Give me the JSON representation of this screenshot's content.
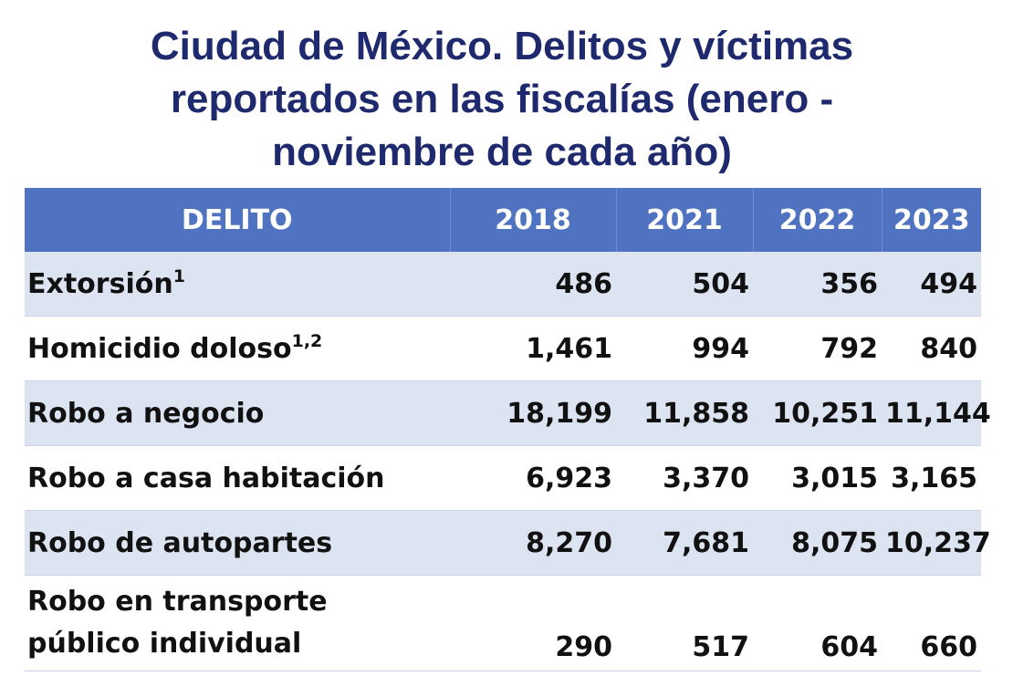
{
  "title": {
    "line1": "Ciudad de México. Delitos y víctimas",
    "line2": "reportados en las fiscalías  (enero -",
    "line3": "noviembre de cada año)"
  },
  "table": {
    "headers": [
      "DELITO",
      "2018",
      "2021",
      "2022",
      "2023"
    ],
    "rows": [
      {
        "label": "Extorsión",
        "note": "1",
        "values": [
          "486",
          "504",
          "356",
          "494"
        ]
      },
      {
        "label": "Homicidio doloso",
        "note": "1,2",
        "values": [
          "1,461",
          "994",
          "792",
          "840"
        ]
      },
      {
        "label": "Robo a negocio",
        "note": "",
        "values": [
          "18,199",
          "11,858",
          "10,251",
          "11,144"
        ]
      },
      {
        "label": "Robo a casa habitación",
        "note": "",
        "values": [
          "6,923",
          "3,370",
          "3,015",
          "3,165"
        ]
      },
      {
        "label": "Robo de autopartes",
        "note": "",
        "values": [
          "8,270",
          "7,681",
          "8,075",
          "10,237"
        ]
      },
      {
        "label": "Robo en transporte público individual",
        "note": "",
        "values": [
          "290",
          "517",
          "604",
          "660"
        ]
      }
    ]
  },
  "colors": {
    "header_bg": "#4f73c1",
    "band_bg": "#dde4f1",
    "title": "#1f2a6e"
  }
}
